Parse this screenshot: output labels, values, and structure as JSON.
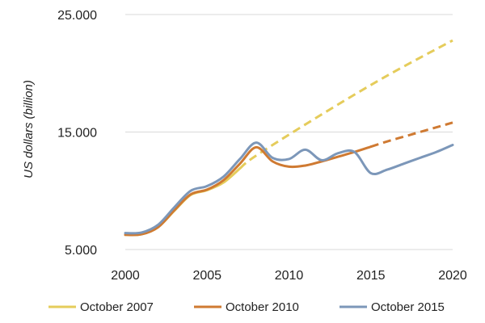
{
  "chart_data": {
    "type": "line",
    "title": "",
    "xlabel": "",
    "ylabel": "US dollars (billion)",
    "xlim": [
      2000,
      2020
    ],
    "ylim": [
      5000,
      25000
    ],
    "x_ticks": [
      {
        "value": 2000,
        "label": "2000"
      },
      {
        "value": 2005,
        "label": "2005"
      },
      {
        "value": 2010,
        "label": "2010"
      },
      {
        "value": 2015,
        "label": "2015"
      },
      {
        "value": 2020,
        "label": "2020"
      }
    ],
    "y_ticks": [
      {
        "value": 5000,
        "label": "5.000"
      },
      {
        "value": 15000,
        "label": "15.000"
      },
      {
        "value": 25000,
        "label": "25.000"
      }
    ],
    "grid": {
      "horizontal": true,
      "vertical": false
    },
    "legend_position": "bottom",
    "series": [
      {
        "name": "October 2007",
        "color": "#e5cc5b",
        "dashed_from": 2007,
        "points": [
          [
            2000,
            6250
          ],
          [
            2001,
            6300
          ],
          [
            2002,
            6900
          ],
          [
            2003,
            8300
          ],
          [
            2004,
            9650
          ],
          [
            2005,
            10050
          ],
          [
            2006,
            10700
          ],
          [
            2007,
            11900
          ],
          [
            2008,
            13000
          ],
          [
            2012,
            16500
          ],
          [
            2016,
            19800
          ],
          [
            2020,
            22800
          ]
        ]
      },
      {
        "name": "October 2010",
        "color": "#cf7a32",
        "dashed_from": 2015,
        "points": [
          [
            2000,
            6250
          ],
          [
            2001,
            6300
          ],
          [
            2002,
            6900
          ],
          [
            2003,
            8350
          ],
          [
            2004,
            9700
          ],
          [
            2005,
            10100
          ],
          [
            2006,
            10900
          ],
          [
            2007,
            12300
          ],
          [
            2008,
            13700
          ],
          [
            2009,
            12500
          ],
          [
            2010,
            12050
          ],
          [
            2011,
            12150
          ],
          [
            2012,
            12500
          ],
          [
            2013,
            12900
          ],
          [
            2014,
            13300
          ],
          [
            2015,
            13750
          ],
          [
            2016,
            14200
          ],
          [
            2017,
            14600
          ],
          [
            2018,
            15000
          ],
          [
            2019,
            15400
          ],
          [
            2020,
            15800
          ]
        ]
      },
      {
        "name": "October 2015",
        "color": "#7c97b9",
        "dashed_from": null,
        "points": [
          [
            2000,
            6400
          ],
          [
            2001,
            6450
          ],
          [
            2002,
            7100
          ],
          [
            2003,
            8600
          ],
          [
            2004,
            10000
          ],
          [
            2005,
            10400
          ],
          [
            2006,
            11200
          ],
          [
            2007,
            12700
          ],
          [
            2008,
            14100
          ],
          [
            2009,
            12800
          ],
          [
            2010,
            12700
          ],
          [
            2011,
            13500
          ],
          [
            2012,
            12600
          ],
          [
            2013,
            13200
          ],
          [
            2014,
            13300
          ],
          [
            2015,
            11500
          ],
          [
            2016,
            11800
          ],
          [
            2017,
            12300
          ],
          [
            2018,
            12800
          ],
          [
            2019,
            13300
          ],
          [
            2020,
            13900
          ]
        ]
      }
    ]
  }
}
